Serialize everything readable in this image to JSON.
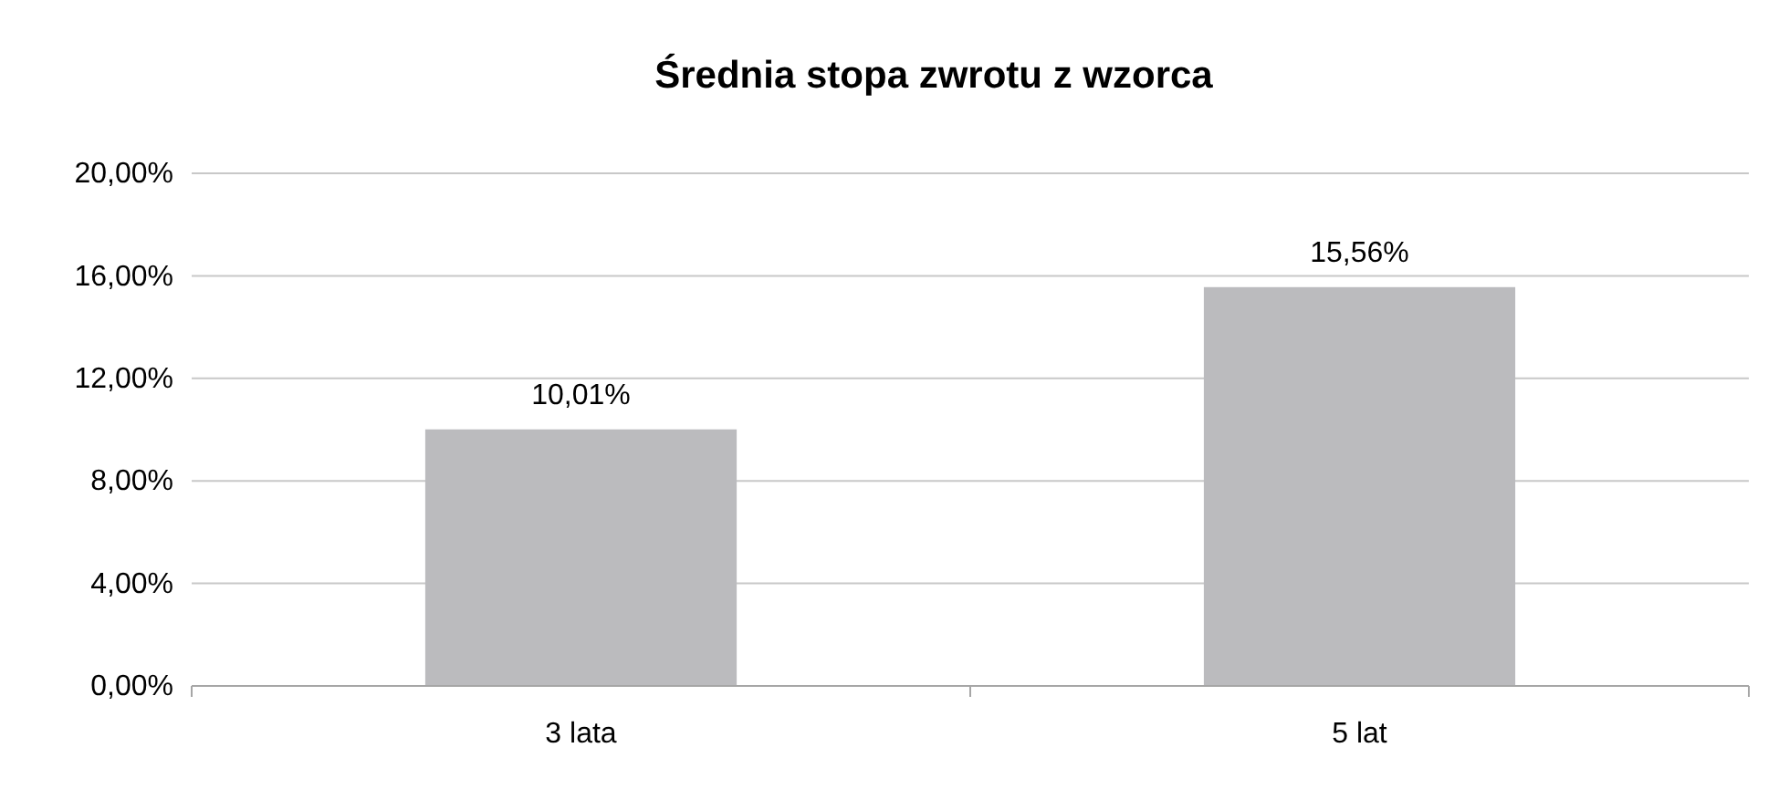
{
  "chart_data": {
    "type": "bar",
    "title": "Średnia stopa zwrotu z wzorca",
    "categories": [
      "3 lata",
      "5 lat"
    ],
    "values": [
      10.01,
      15.56
    ],
    "value_labels": [
      "10,01%",
      "15,56%"
    ],
    "color": "#bbbbbe",
    "ylim": [
      0,
      20
    ],
    "yticks": [
      {
        "value": 0,
        "label": "0,00%"
      },
      {
        "value": 4,
        "label": "4,00%"
      },
      {
        "value": 8,
        "label": "8,00%"
      },
      {
        "value": 12,
        "label": "12,00%"
      },
      {
        "value": 16,
        "label": "16,00%"
      },
      {
        "value": 20,
        "label": "20,00%"
      }
    ],
    "grid": "y"
  }
}
